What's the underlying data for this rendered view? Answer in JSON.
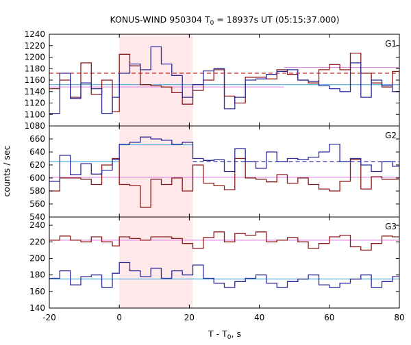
{
  "chart_data": {
    "type": "line",
    "title": "KONUS-WIND 950304 T",
    "title_sub": "0",
    "title_tail": " = 18937s UT (05:15:37.000)",
    "xlabel": "T - T",
    "xlabel_sub": "0",
    "xlabel_tail": ", s",
    "ylabel": "counts / sec",
    "xlim": [
      -20,
      80
    ],
    "xticks": [
      -20,
      0,
      20,
      40,
      60,
      80
    ],
    "highlight": {
      "x0": 0,
      "x1": 21
    },
    "panels": [
      {
        "label": "G1",
        "ylim": [
          1080,
          1240
        ],
        "yticks": [
          1080,
          1100,
          1120,
          1140,
          1160,
          1180,
          1200,
          1220,
          1240
        ],
        "x": [
          -20,
          -17,
          -14,
          -11,
          -8,
          -5,
          -2,
          0,
          3,
          6,
          9,
          12,
          15,
          18,
          21,
          24,
          27,
          30,
          33,
          36,
          39,
          42,
          45,
          48,
          51,
          54,
          57,
          60,
          63,
          66,
          69,
          72,
          75,
          78,
          80
        ],
        "series": [
          {
            "color": "#8b1a1a",
            "values": [
              1145,
              1160,
              1130,
              1190,
              1135,
              1160,
              1105,
              1205,
              1185,
              1152,
              1150,
              1148,
              1138,
              1118,
              1142,
              1160,
              1178,
              1132,
              1120,
              1165,
              1165,
              1162,
              1178,
              1170,
              1160,
              1155,
              1178,
              1187,
              1178,
              1207,
              1172,
              1155,
              1148,
              1175,
              1175
            ]
          },
          {
            "color": "#2b2b9a",
            "values": [
              1102,
              1172,
              1128,
              1155,
              1145,
              1102,
              1130,
              1172,
              1188,
              1178,
              1218,
              1188,
              1168,
              1130,
              1152,
              1176,
              1180,
              1110,
              1130,
              1160,
              1162,
              1170,
              1175,
              1178,
              1160,
              1158,
              1150,
              1145,
              1140,
              1190,
              1130,
              1160,
              1150,
              1140,
              1140
            ]
          }
        ],
        "refs": [
          {
            "color": "#cc0000",
            "dash": true,
            "x0": -20,
            "x1": 80,
            "y": 1172
          },
          {
            "color": "#4aa9e0",
            "dash": false,
            "x0": -20,
            "x1": 80,
            "y": 1152
          },
          {
            "color": "#e090e0",
            "dash": false,
            "x0": -20,
            "x1": 47,
            "y": 1148
          },
          {
            "color": "#e090e0",
            "dash": false,
            "x0": 47,
            "x1": 80,
            "y": 1182
          }
        ]
      },
      {
        "label": "G2",
        "ylim": [
          540,
          680
        ],
        "yticks": [
          540,
          560,
          580,
          600,
          620,
          640,
          660
        ],
        "x": [
          -20,
          -17,
          -14,
          -11,
          -8,
          -5,
          -2,
          0,
          3,
          6,
          9,
          12,
          15,
          18,
          21,
          24,
          27,
          30,
          33,
          36,
          39,
          42,
          45,
          48,
          51,
          54,
          57,
          60,
          63,
          66,
          69,
          72,
          75,
          78,
          80
        ],
        "series": [
          {
            "color": "#8b1a1a",
            "values": [
              580,
              600,
              600,
              598,
              590,
              620,
              630,
              590,
              588,
              555,
              598,
              590,
              600,
              580,
              620,
              592,
              588,
              582,
              630,
              600,
              598,
              594,
              605,
              592,
              600,
              590,
              583,
              580,
              595,
              628,
              583,
              602,
              598,
              598,
              598
            ]
          },
          {
            "color": "#2b2b9a",
            "values": [
              595,
              635,
              605,
              622,
              606,
              612,
              628,
              652,
              655,
              663,
              660,
              658,
              652,
              655,
              630,
              627,
              628,
              610,
              645,
              625,
              615,
              640,
              625,
              630,
              628,
              632,
              640,
              652,
              625,
              630,
              620,
              610,
              625,
              618,
              618
            ]
          }
        ],
        "refs": [
          {
            "color": "#4aa9e0",
            "dash": false,
            "x0": -20,
            "x1": 0,
            "y": 625
          },
          {
            "color": "#4aa9e0",
            "dash": false,
            "x0": 0,
            "x1": 21,
            "y": 651
          },
          {
            "color": "#2b2b9a",
            "dash": true,
            "x0": 21,
            "x1": 80,
            "y": 625
          },
          {
            "color": "#e090e0",
            "dash": false,
            "x0": -20,
            "x1": 80,
            "y": 601
          }
        ]
      },
      {
        "label": "G3",
        "ylim": [
          140,
          250
        ],
        "yticks": [
          140,
          160,
          180,
          200,
          220,
          240
        ],
        "x": [
          -20,
          -17,
          -14,
          -11,
          -8,
          -5,
          -2,
          0,
          3,
          6,
          9,
          12,
          15,
          18,
          21,
          24,
          27,
          30,
          33,
          36,
          39,
          42,
          45,
          48,
          51,
          54,
          57,
          60,
          63,
          66,
          69,
          72,
          75,
          78,
          80
        ],
        "series": [
          {
            "color": "#8b1a1a",
            "values": [
              222,
              227,
              222,
              220,
              226,
              220,
              215,
              226,
              224,
              222,
              226,
              226,
              224,
              218,
              212,
              225,
              232,
              220,
              230,
              228,
              232,
              220,
              222,
              225,
              220,
              212,
              218,
              226,
              228,
              214,
              210,
              218,
              227,
              226,
              226
            ]
          },
          {
            "color": "#2b2b9a",
            "values": [
              176,
              185,
              168,
              178,
              180,
              165,
              182,
              195,
              185,
              178,
              188,
              176,
              185,
              180,
              192,
              176,
              170,
              165,
              172,
              176,
              180,
              170,
              165,
              172,
              175,
              180,
              168,
              165,
              170,
              175,
              180,
              165,
              172,
              178,
              178
            ]
          }
        ],
        "refs": [
          {
            "color": "#4aa9e0",
            "dash": false,
            "x0": -20,
            "x1": 80,
            "y": 175
          },
          {
            "color": "#e090e0",
            "dash": false,
            "x0": -20,
            "x1": 80,
            "y": 222
          }
        ]
      }
    ]
  }
}
